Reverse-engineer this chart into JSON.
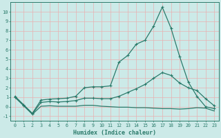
{
  "x": [
    0,
    1,
    2,
    3,
    4,
    5,
    6,
    7,
    8,
    9,
    10,
    11,
    12,
    13,
    14,
    15,
    16,
    17,
    18,
    19,
    20,
    21,
    22,
    23
  ],
  "line1": [
    1.1,
    0.2,
    -0.7,
    0.7,
    0.8,
    0.85,
    0.9,
    1.1,
    2.0,
    2.1,
    2.1,
    2.2,
    4.7,
    5.4,
    6.6,
    7.0,
    8.5,
    10.5,
    8.3,
    5.3,
    2.6,
    1.1,
    0.0,
    -0.2
  ],
  "line2": [
    1.0,
    0.15,
    -0.75,
    0.45,
    0.55,
    0.5,
    0.55,
    0.65,
    0.9,
    0.9,
    0.85,
    0.85,
    1.1,
    1.5,
    1.9,
    2.35,
    3.0,
    3.6,
    3.3,
    2.5,
    2.0,
    1.7,
    0.85,
    0.1
  ],
  "line3": [
    1.0,
    0.1,
    -0.8,
    0.05,
    0.1,
    0.05,
    0.05,
    0.05,
    0.15,
    0.15,
    0.05,
    0.0,
    -0.05,
    -0.05,
    -0.1,
    -0.1,
    -0.15,
    -0.2,
    -0.2,
    -0.25,
    -0.2,
    -0.1,
    -0.15,
    -0.45
  ],
  "color": "#2a7a6a",
  "bg_color": "#cceae8",
  "grid_major_color": "#e8b0b0",
  "grid_minor_color": "#f0d0d0",
  "xlabel": "Humidex (Indice chaleur)",
  "ylim": [
    -1.5,
    11.0
  ],
  "xlim": [
    -0.5,
    23.5
  ],
  "yticks": [
    -1,
    0,
    1,
    2,
    3,
    4,
    5,
    6,
    7,
    8,
    9,
    10
  ],
  "xticks": [
    0,
    1,
    2,
    3,
    4,
    5,
    6,
    7,
    8,
    9,
    10,
    11,
    12,
    13,
    14,
    15,
    16,
    17,
    18,
    19,
    20,
    21,
    22,
    23
  ]
}
